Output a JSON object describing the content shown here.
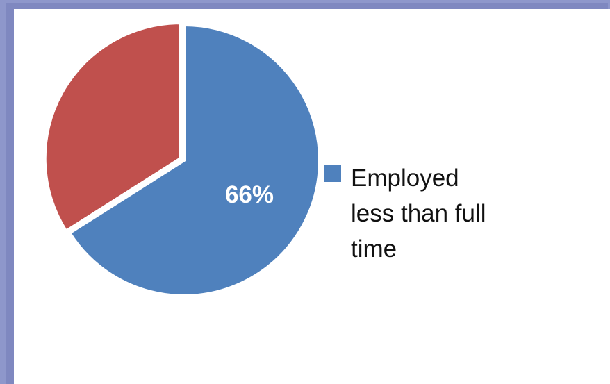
{
  "chart_data": {
    "type": "pie",
    "slices": [
      {
        "name": "Employed less than full time",
        "value": 66,
        "label": "66%",
        "color": "#4f81bd",
        "show_label": true,
        "in_legend": true
      },
      {
        "name": "",
        "value": 34,
        "label": "",
        "color": "#c0504d",
        "show_label": false,
        "in_legend": false
      }
    ],
    "start_angle_deg": 0,
    "direction": "clockwise",
    "exploded_slice_index": 1,
    "legend_placement": "right"
  },
  "legend": {
    "label": "Employed less than full time",
    "color": "#4f81bd"
  }
}
